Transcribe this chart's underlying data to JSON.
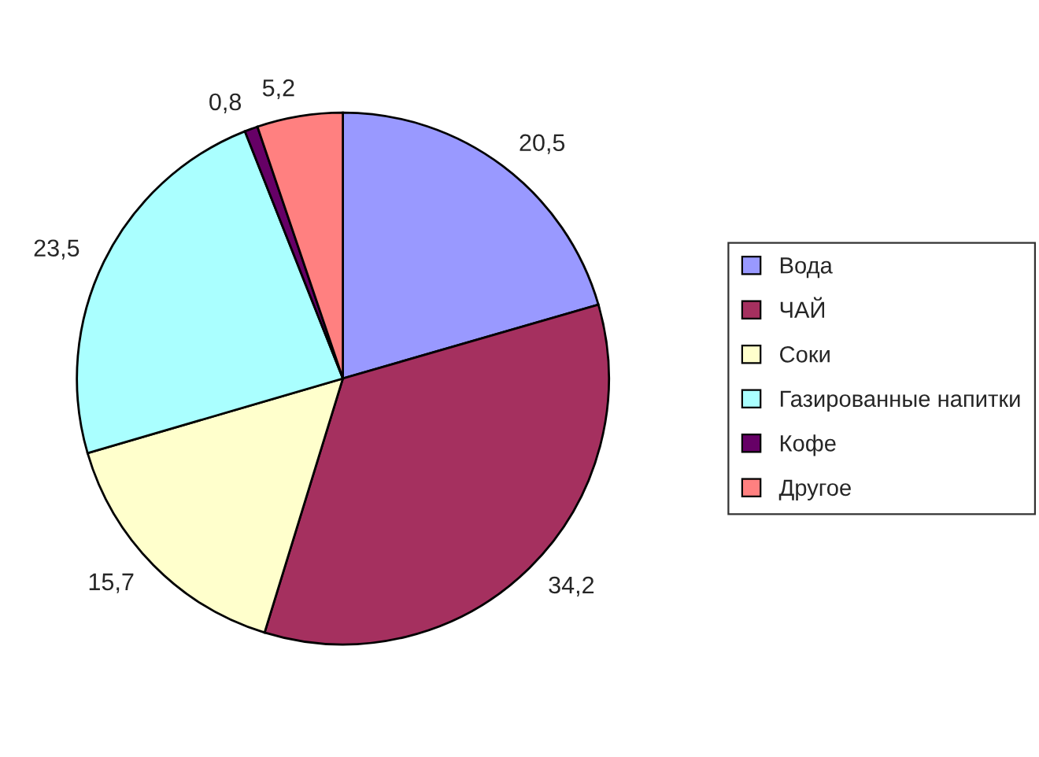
{
  "chart_data": {
    "type": "pie",
    "categories": [
      "Вода",
      "ЧАЙ",
      "Соки",
      "Газированные напитки",
      "Кофе",
      "Другое"
    ],
    "values": [
      20.5,
      34.2,
      15.7,
      23.5,
      0.8,
      5.2
    ],
    "value_labels": [
      "20,5",
      "34,2",
      "15,7",
      "23,5",
      "0,8",
      "5,2"
    ],
    "colors": [
      "#9999ff",
      "#a5305f",
      "#ffffcc",
      "#aaffff",
      "#660066",
      "#ff8080"
    ],
    "legend": "right"
  }
}
